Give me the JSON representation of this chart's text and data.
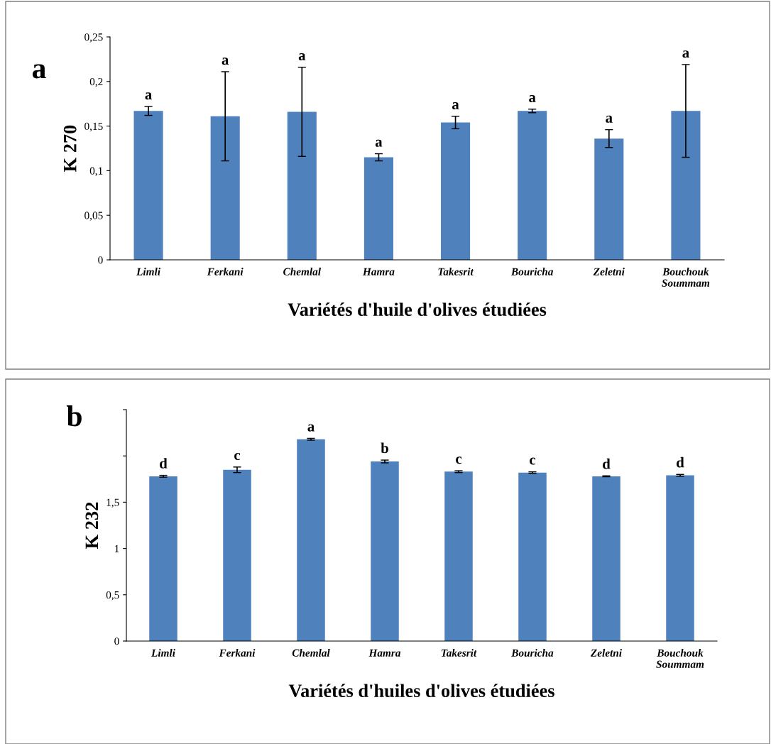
{
  "chart_data": [
    {
      "type": "bar",
      "xlabel": "Variétés d'huile d'olives étudiées",
      "ylabel": "K 270",
      "title": "a",
      "categories": [
        "Limli",
        "Ferkani",
        "Chemlal",
        "Hamra",
        "Takesrit",
        "Bouricha",
        "Zeletni",
        "Bouchouk\nSoummam"
      ],
      "values": [
        0.167,
        0.161,
        0.166,
        0.115,
        0.154,
        0.167,
        0.136,
        0.167
      ],
      "errors": [
        0.005,
        0.05,
        0.05,
        0.004,
        0.007,
        0.002,
        0.01,
        0.052
      ],
      "color": "#4f81bd",
      "ylim": [
        0,
        0.25
      ],
      "yticks": [
        0,
        {
          "value": 0.05,
          "label": "0,05"
        },
        {
          "value": 0.1,
          "label": "0,1"
        },
        {
          "value": 0.15,
          "label": "0,15"
        },
        {
          "value": 0.2,
          "label": "0,2"
        },
        {
          "value": 0.25,
          "label": "0,25"
        }
      ],
      "annotations": [
        {
          "text": "a",
          "x": "Limli",
          "y": 0.172
        },
        {
          "text": "a",
          "x": "Ferkani",
          "y": 0.211
        },
        {
          "text": "a",
          "x": "Chemlal",
          "y": 0.216
        },
        {
          "text": "a",
          "x": "Hamra",
          "y": 0.119
        },
        {
          "text": "a",
          "x": "Takesrit",
          "y": 0.161
        },
        {
          "text": "a",
          "x": "Bouricha",
          "y": 0.169
        },
        {
          "text": "a",
          "x": "Zeletni",
          "y": 0.146
        },
        {
          "text": "a",
          "x": "Bouchouk\nSoummam",
          "y": 0.219
        }
      ],
      "grid": false,
      "legend": false
    },
    {
      "type": "bar",
      "xlabel": "Variétés d'huiles d'olives étudiées",
      "ylabel": "K 232",
      "title": "b",
      "categories": [
        "Limli",
        "Ferkani",
        "Chemlal",
        "Hamra",
        "Takesrit",
        "Bouricha",
        "Zeletni",
        "Bouchouk\nSoummam"
      ],
      "values": [
        1.78,
        1.85,
        2.18,
        1.94,
        1.83,
        1.82,
        1.78,
        1.79
      ],
      "errors": [
        0.01,
        0.03,
        0.01,
        0.015,
        0.01,
        0.008,
        0.005,
        0.01
      ],
      "color": "#4f81bd",
      "ylim": [
        0,
        2.5
      ],
      "yticks": [
        0,
        {
          "value": 0.5,
          "label": "0,5"
        },
        1,
        {
          "value": 1.5,
          "label": "1,5"
        },
        {
          "value": 2,
          "label": null
        },
        {
          "value": 2.5,
          "label": null
        }
      ],
      "annotations": [
        {
          "text": "d",
          "x": "Limli",
          "y": 1.79
        },
        {
          "text": "c",
          "x": "Ferkani",
          "y": 1.88
        },
        {
          "text": "a",
          "x": "Chemlal",
          "y": 2.19
        },
        {
          "text": "b",
          "x": "Hamra",
          "y": 1.955
        },
        {
          "text": "c",
          "x": "Takesrit",
          "y": 1.84
        },
        {
          "text": "c",
          "x": "Bouricha",
          "y": 1.83
        },
        {
          "text": "d",
          "x": "Zeletni",
          "y": 1.785
        },
        {
          "text": "d",
          "x": "Bouchouk\nSoummam",
          "y": 1.8
        }
      ],
      "grid": false,
      "legend": false
    }
  ]
}
